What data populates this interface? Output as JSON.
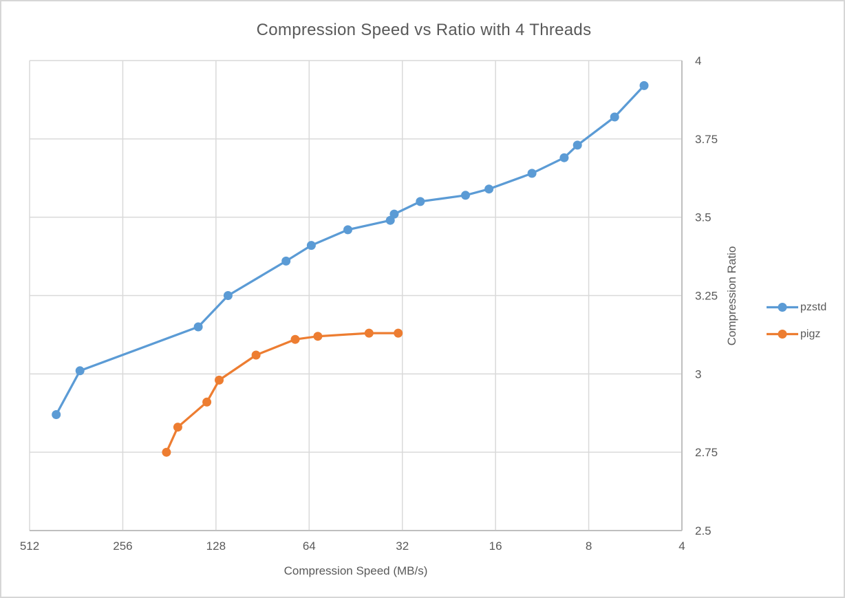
{
  "chart_data": {
    "type": "line",
    "title": "Compression Speed vs Ratio with 4 Threads",
    "xlabel": "Compression Speed (MB/s)",
    "ylabel": "Compression Ratio",
    "x_axis": {
      "scale": "log2",
      "reversed": true,
      "range": [
        512,
        4
      ],
      "tick_labels": [
        "512",
        "256",
        "128",
        "64",
        "32",
        "16",
        "8",
        "4"
      ]
    },
    "y_axis": {
      "side": "right",
      "range": [
        2.5,
        4
      ],
      "tick_labels": [
        "4",
        "3.75",
        "3.5",
        "3.25",
        "3",
        "2.75",
        "2.5"
      ]
    },
    "grid": true,
    "legend_position": "right",
    "series": [
      {
        "name": "pzstd",
        "color": "#5B9BD5",
        "points": [
          [
            420,
            2.87
          ],
          [
            352,
            3.01
          ],
          [
            146,
            3.15
          ],
          [
            117,
            3.25
          ],
          [
            76,
            3.36
          ],
          [
            63,
            3.41
          ],
          [
            48,
            3.46
          ],
          [
            35,
            3.49
          ],
          [
            34,
            3.51
          ],
          [
            28,
            3.55
          ],
          [
            20,
            3.57
          ],
          [
            16.8,
            3.59
          ],
          [
            12.2,
            3.64
          ],
          [
            9.6,
            3.69
          ],
          [
            8.7,
            3.73
          ],
          [
            6.6,
            3.82
          ],
          [
            5.3,
            3.92
          ]
        ]
      },
      {
        "name": "pigz",
        "color": "#ED7D31",
        "points": [
          [
            185,
            2.75
          ],
          [
            170,
            2.83
          ],
          [
            137,
            2.91
          ],
          [
            125,
            2.98
          ],
          [
            95,
            3.06
          ],
          [
            71,
            3.11
          ],
          [
            60,
            3.12
          ],
          [
            41,
            3.13
          ],
          [
            33,
            3.13
          ]
        ]
      }
    ],
    "style": {
      "grid_color": "#D9D9D9",
      "axis_line_color": "#BFBFBF",
      "text_color": "#595959",
      "background": "#FFFFFF",
      "tick_font_size": 17,
      "line_width": 3.25,
      "marker_radius": 6.5
    }
  }
}
